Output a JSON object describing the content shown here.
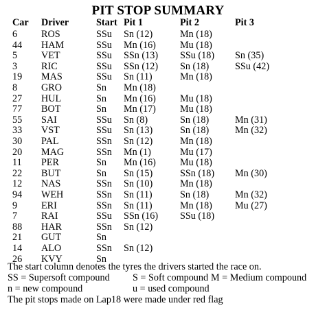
{
  "title": "PIT STOP SUMMARY",
  "columns": [
    "Car",
    "Driver",
    "Start",
    "Pit 1",
    "Pit 2",
    "Pit 3"
  ],
  "rows": [
    {
      "car": "6",
      "driver": "ROS",
      "start": "SSu",
      "pit1": "Sn (12)",
      "pit2": "Mn (18)",
      "pit3": ""
    },
    {
      "car": "44",
      "driver": "HAM",
      "start": "SSu",
      "pit1": "Mn (16)",
      "pit2": "Mu (18)",
      "pit3": ""
    },
    {
      "car": "5",
      "driver": "VET",
      "start": "SSu",
      "pit1": "SSn (13)",
      "pit2": "SSu (18)",
      "pit3": "Sn (35)"
    },
    {
      "car": "3",
      "driver": "RIC",
      "start": "SSu",
      "pit1": "SSn (12)",
      "pit2": "Sn (18)",
      "pit3": "SSu (42)"
    },
    {
      "car": "19",
      "driver": "MAS",
      "start": "SSu",
      "pit1": "Sn (11)",
      "pit2": "Mn (18)",
      "pit3": ""
    },
    {
      "car": "8",
      "driver": "GRO",
      "start": "Sn",
      "pit1": "Mn (18)",
      "pit2": "",
      "pit3": ""
    },
    {
      "car": "27",
      "driver": "HUL",
      "start": "Sn",
      "pit1": "Mn (16)",
      "pit2": "Mu (18)",
      "pit3": ""
    },
    {
      "car": "77",
      "driver": "BOT",
      "start": "Sn",
      "pit1": "Mn (17)",
      "pit2": "Mu (18)",
      "pit3": ""
    },
    {
      "car": "55",
      "driver": "SAI",
      "start": "SSu",
      "pit1": "Sn (8)",
      "pit2": "Sn (18)",
      "pit3": "Mn (31)"
    },
    {
      "car": "33",
      "driver": "VST",
      "start": "SSu",
      "pit1": "Sn (13)",
      "pit2": "Sn (18)",
      "pit3": "Mn (32)"
    },
    {
      "car": "30",
      "driver": "PAL",
      "start": "SSn",
      "pit1": "Sn (12)",
      "pit2": "Mn (18)",
      "pit3": ""
    },
    {
      "car": "20",
      "driver": "MAG",
      "start": "SSn",
      "pit1": "Mn (1)",
      "pit2": " Mu (17)",
      "pit3": ""
    },
    {
      "car": "11",
      "driver": "PER",
      "start": "Sn",
      "pit1": "Mn (16)",
      "pit2": "Mu (18)",
      "pit3": ""
    },
    {
      "car": "22",
      "driver": "BUT",
      "start": "Sn",
      "pit1": "Sn (15)",
      "pit2": "SSn (18)",
      "pit3": "Mn (30)"
    },
    {
      "car": "12",
      "driver": "NAS",
      "start": "SSn",
      "pit1": "Sn (10)",
      "pit2": "Mn (18)",
      "pit3": ""
    },
    {
      "car": "94",
      "driver": "WEH",
      "start": "SSn",
      "pit1": "Sn (11)",
      "pit2": "Sn (18)",
      "pit3": "Mn (32)"
    },
    {
      "car": "9",
      "driver": "ERI",
      "start": "SSn",
      "pit1": "Sn (11)",
      "pit2": "Mn (18)",
      "pit3": "Mu (27)"
    },
    {
      "car": "7",
      "driver": "RAI",
      "start": "SSu",
      "pit1": "SSn (16)",
      "pit2": "SSu (18)",
      "pit3": ""
    },
    {
      "car": "88",
      "driver": "HAR",
      "start": "SSn",
      "pit1": "Sn (12)",
      "pit2": "",
      "pit3": ""
    },
    {
      "car": "21",
      "driver": "GUT",
      "start": "Sn",
      "pit1": "",
      "pit2": "",
      "pit3": ""
    },
    {
      "car": "14",
      "driver": "ALO",
      "start": "SSn",
      "pit1": "Sn (12)",
      "pit2": "",
      "pit3": ""
    },
    {
      "car": "26",
      "driver": "KVY",
      "start": "Sn",
      "pit1": "",
      "pit2": "",
      "pit3": ""
    }
  ],
  "notes": {
    "start_note": "The start column denotes the tyres the drivers started the race on.",
    "legend_ss": "SS = Supersoft compound",
    "legend_s": "S = Soft compound",
    "legend_m": "M = Medium compound",
    "legend_n": "n  = new compound",
    "legend_u": "u = used compound",
    "red_flag_note": "The pit stops made on Lap18 were made under red flag"
  }
}
